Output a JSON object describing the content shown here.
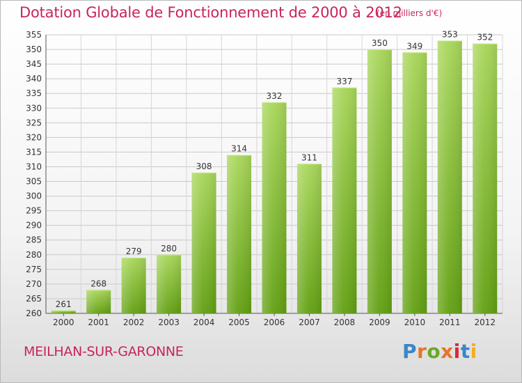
{
  "header": {
    "title": "Dotation Globale de Fonctionnement de 2000 à 2012",
    "unit": "(en milliers d'€)"
  },
  "footer": {
    "town": "MEILHAN-SUR-GARONNE",
    "logo": "Proxiti"
  },
  "colors": {
    "title": "#c8245e",
    "bar_light": "#a8d65a",
    "bar_dark": "#62a012",
    "logo": [
      "#3a86c8",
      "#e8742a",
      "#6aa82a",
      "#e8742a",
      "#d8283a",
      "#3a86c8",
      "#f0b020"
    ]
  },
  "chart_data": {
    "type": "bar",
    "categories": [
      "2000",
      "2001",
      "2002",
      "2003",
      "2004",
      "2005",
      "2006",
      "2007",
      "2008",
      "2009",
      "2010",
      "2011",
      "2012"
    ],
    "values": [
      261,
      268,
      279,
      280,
      308,
      314,
      332,
      311,
      337,
      350,
      349,
      353,
      352
    ],
    "ylim": [
      260,
      355
    ],
    "ytick_step": 5,
    "grid": true,
    "data_labels": true
  }
}
